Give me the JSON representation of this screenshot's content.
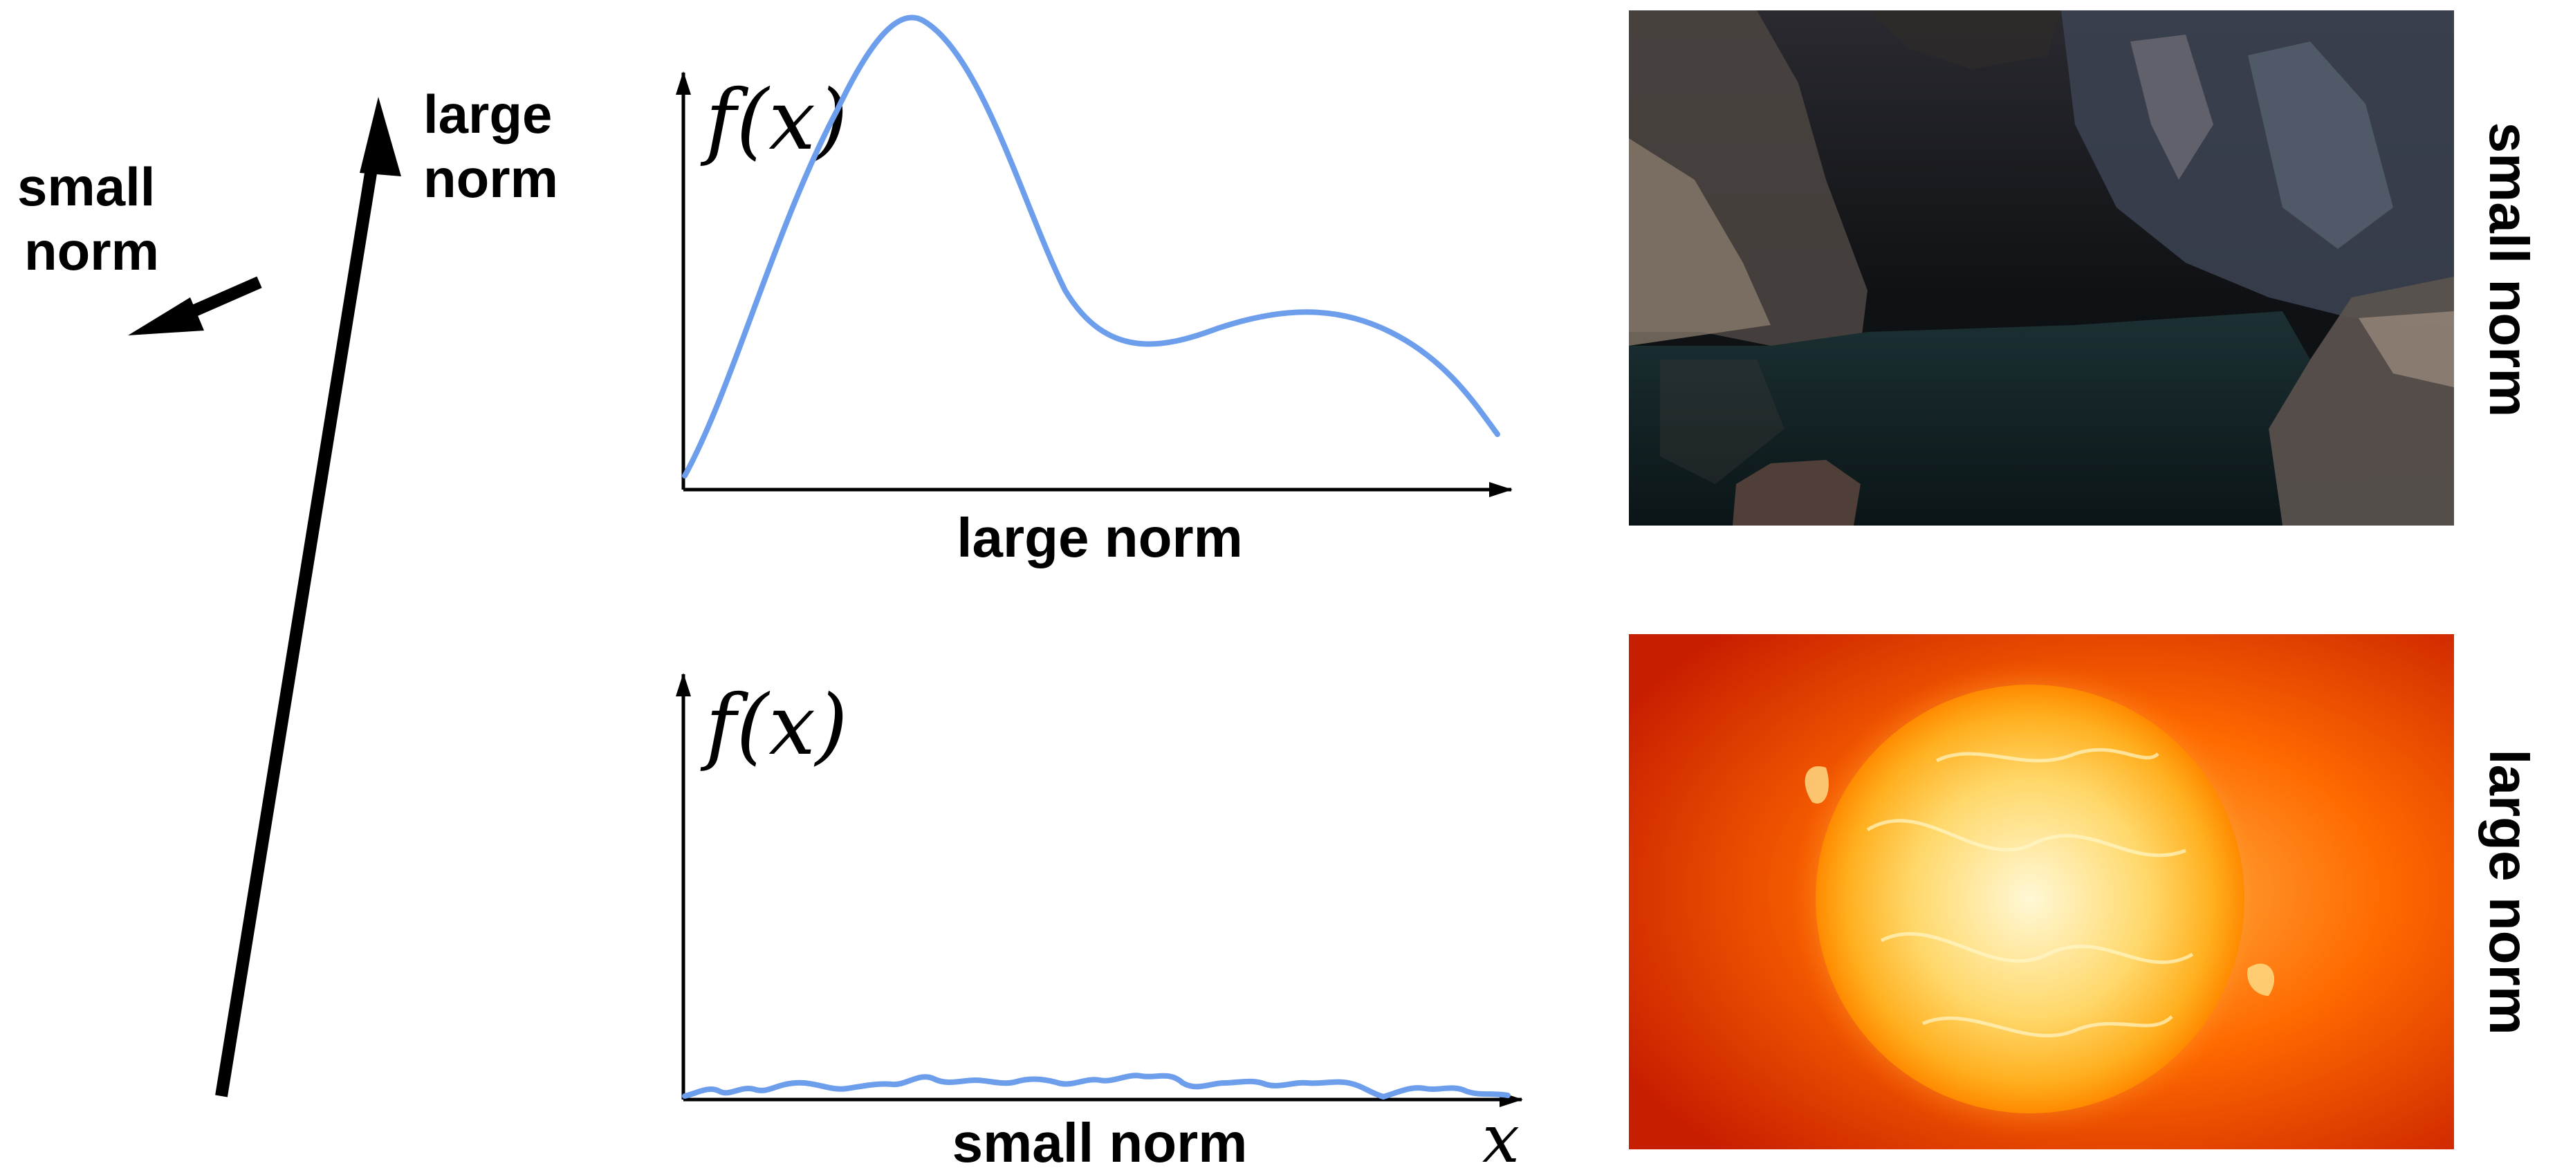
{
  "vectors": {
    "small_label_line1": "small",
    "small_label_line2": "norm",
    "large_label_line1": "large",
    "large_label_line2": "norm"
  },
  "plots": [
    {
      "ylabel": "f(x)",
      "caption": "large norm",
      "xlabel": "",
      "curve_color": "#6d9eeb"
    },
    {
      "ylabel": "f(x)",
      "caption": "small norm",
      "xlabel": "x",
      "curve_color": "#6d9eeb"
    }
  ],
  "images": [
    {
      "subject": "dark cave with water",
      "side_label": "small norm"
    },
    {
      "subject": "glowing sun",
      "side_label": "large norm"
    }
  ],
  "colors": {
    "arrow": "#000000",
    "curve": "#6d9eeb",
    "background": "#ffffff"
  }
}
